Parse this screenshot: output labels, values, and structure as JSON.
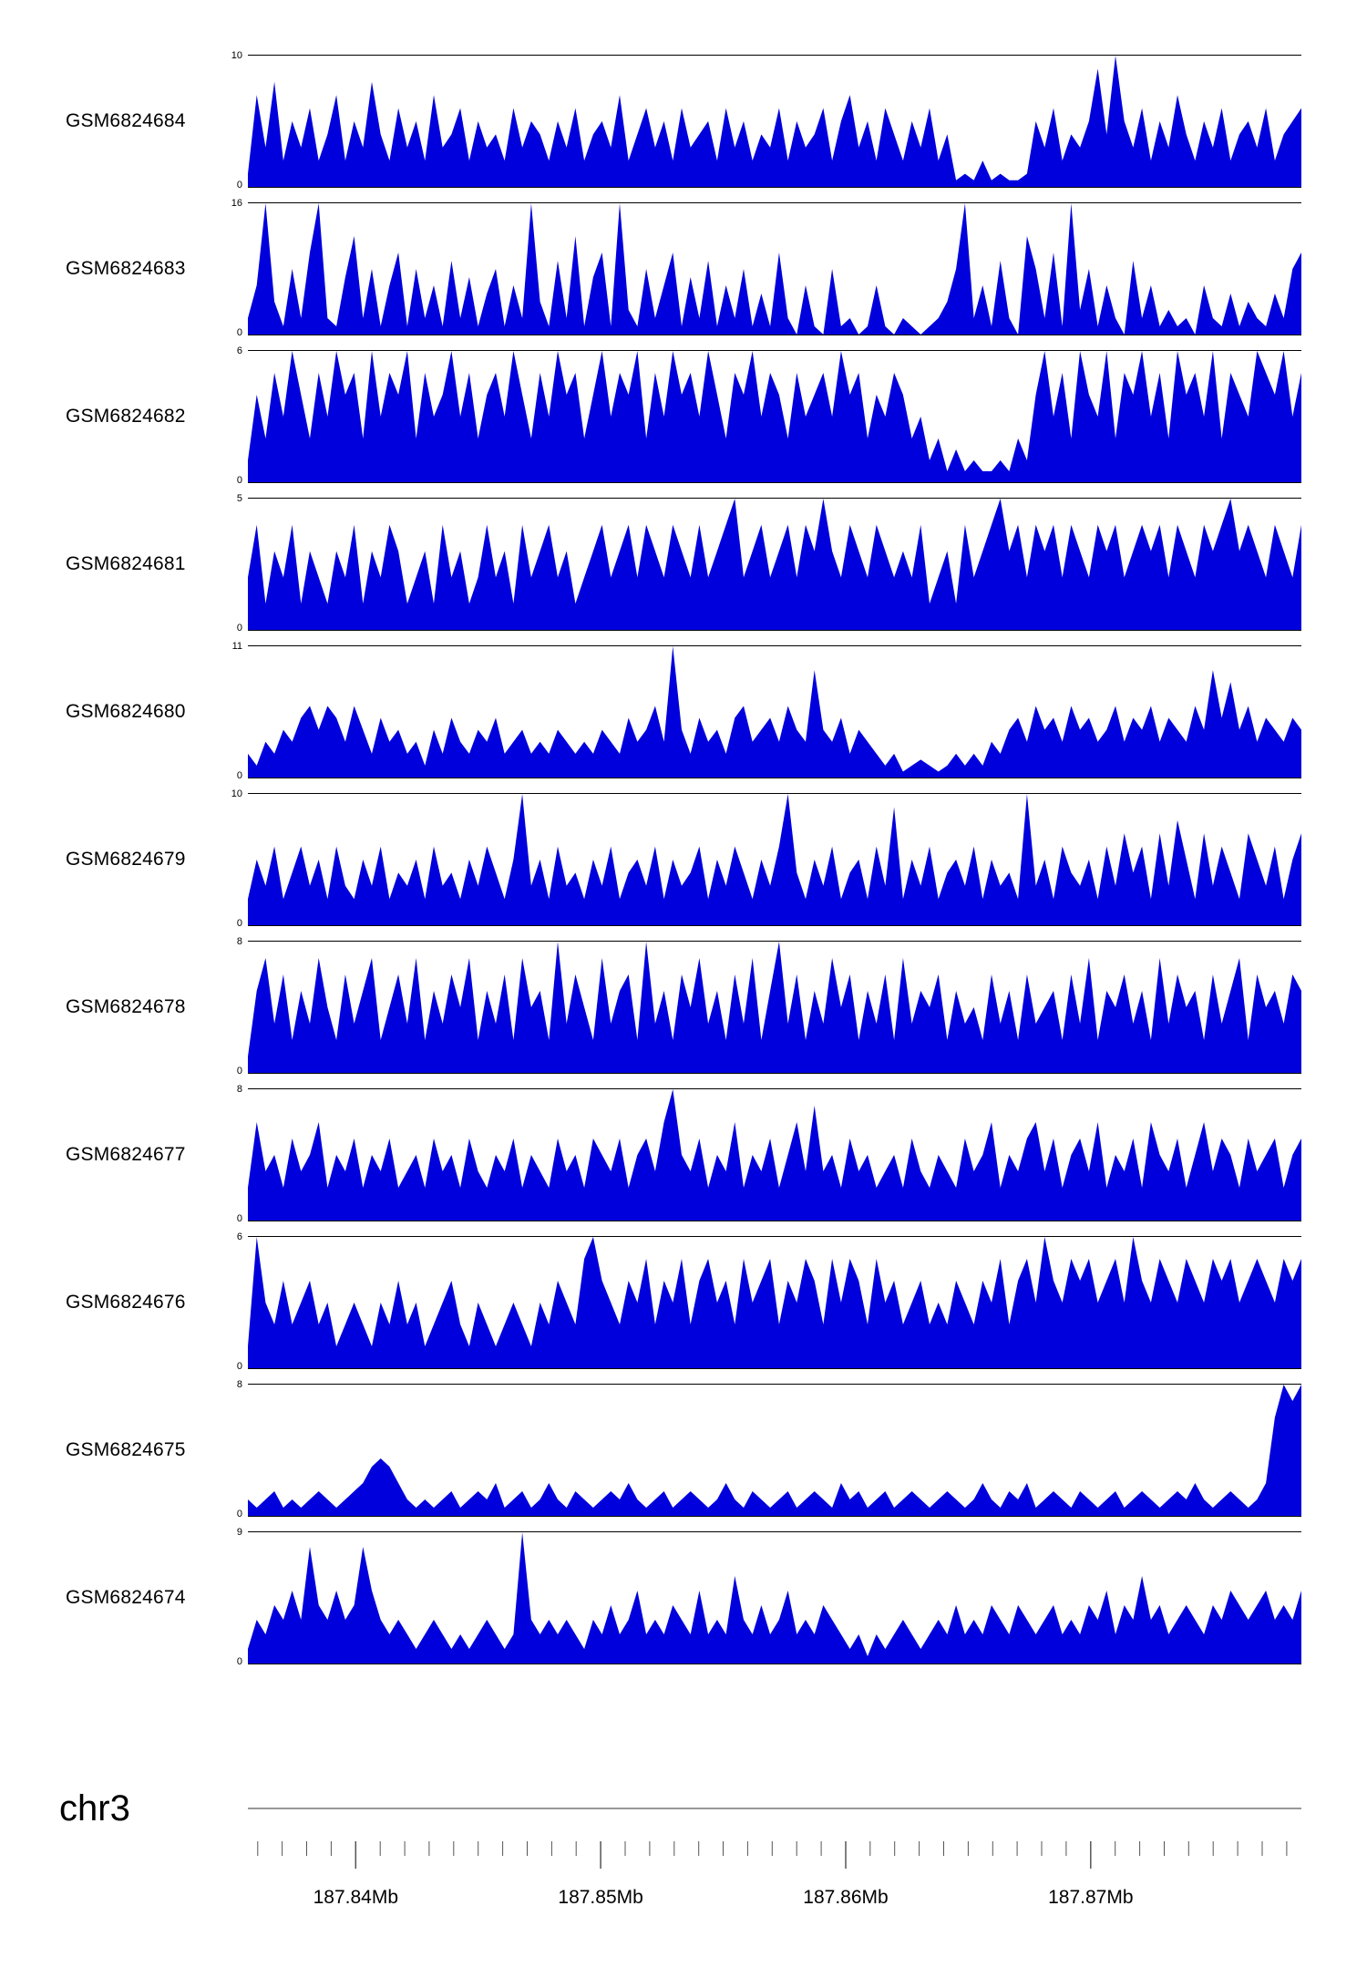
{
  "page": {
    "background": "#ffffff"
  },
  "colors": {
    "track_fill": "#0000dd",
    "frame_line": "#000000",
    "axis_line": "#777777"
  },
  "chart_data": {
    "type": "area",
    "title": "",
    "description": "Genome browser read-coverage tracks for 11 GEO samples over chr3",
    "chromosome": "chr3",
    "y_zero_label": "0",
    "x_axis": {
      "start_mb": 187.8356,
      "end_mb": 187.8786,
      "unit": "Mb",
      "minor_tick_step_mb": 0.001,
      "major_ticks_mb": [
        187.84,
        187.85,
        187.86,
        187.87
      ],
      "major_tick_labels": [
        "187.84Mb",
        "187.85Mb",
        "187.86Mb",
        "187.87Mb"
      ]
    },
    "tracks": [
      {
        "label": "GSM6824684",
        "ymax": 10,
        "ylim": [
          0,
          10
        ],
        "values": [
          1,
          7,
          3,
          8,
          2,
          5,
          3,
          6,
          2,
          4,
          7,
          2,
          5,
          3,
          8,
          4,
          2,
          6,
          3,
          5,
          2,
          7,
          3,
          4,
          6,
          2,
          5,
          3,
          4,
          2,
          6,
          3,
          5,
          4,
          2,
          5,
          3,
          6,
          2,
          4,
          5,
          3,
          7,
          2,
          4,
          6,
          3,
          5,
          2,
          6,
          3,
          4,
          5,
          2,
          6,
          3,
          5,
          2,
          4,
          3,
          6,
          2,
          5,
          3,
          4,
          6,
          2,
          5,
          7,
          3,
          5,
          2,
          6,
          4,
          2,
          5,
          3,
          6,
          2,
          4,
          0.5,
          1,
          0.5,
          2,
          0.5,
          1,
          0.5,
          0.5,
          1,
          5,
          3,
          6,
          2,
          4,
          3,
          5,
          9,
          4,
          10,
          5,
          3,
          6,
          2,
          5,
          3,
          7,
          4,
          2,
          5,
          3,
          6,
          2,
          4,
          5,
          3,
          6,
          2,
          4,
          5,
          6
        ]
      },
      {
        "label": "GSM6824683",
        "ymax": 16,
        "ylim": [
          0,
          16
        ],
        "values": [
          2,
          6,
          16,
          4,
          1,
          8,
          2,
          10,
          16,
          2,
          1,
          7,
          12,
          2,
          8,
          1,
          6,
          10,
          1,
          8,
          2,
          6,
          1,
          9,
          2,
          7,
          1,
          5,
          8,
          1,
          6,
          2,
          16,
          4,
          1,
          9,
          2,
          12,
          1,
          7,
          10,
          1,
          16,
          3,
          1,
          8,
          2,
          6,
          10,
          1,
          7,
          2,
          9,
          1,
          6,
          2,
          8,
          1,
          5,
          1,
          10,
          2,
          0,
          6,
          1,
          0,
          8,
          1,
          2,
          0,
          1,
          6,
          1,
          0,
          2,
          1,
          0,
          1,
          2,
          4,
          8,
          16,
          2,
          6,
          1,
          9,
          2,
          0,
          12,
          8,
          2,
          10,
          1,
          16,
          3,
          8,
          1,
          6,
          2,
          0,
          9,
          2,
          6,
          1,
          3,
          1,
          2,
          0,
          6,
          2,
          1,
          5,
          1,
          4,
          2,
          1,
          5,
          2,
          8,
          10
        ]
      },
      {
        "label": "GSM6824682",
        "ymax": 6,
        "ylim": [
          0,
          6
        ],
        "values": [
          1,
          4,
          2,
          5,
          3,
          6,
          4,
          2,
          5,
          3,
          6,
          4,
          5,
          2,
          6,
          3,
          5,
          4,
          6,
          2,
          5,
          3,
          4,
          6,
          3,
          5,
          2,
          4,
          5,
          3,
          6,
          4,
          2,
          5,
          3,
          6,
          4,
          5,
          2,
          4,
          6,
          3,
          5,
          4,
          6,
          2,
          5,
          3,
          6,
          4,
          5,
          3,
          6,
          4,
          2,
          5,
          4,
          6,
          3,
          5,
          4,
          2,
          5,
          3,
          4,
          5,
          3,
          6,
          4,
          5,
          2,
          4,
          3,
          5,
          4,
          2,
          3,
          1,
          2,
          0.5,
          1.5,
          0.5,
          1,
          0.5,
          0.5,
          1,
          0.5,
          2,
          1,
          4,
          6,
          3,
          5,
          2,
          6,
          4,
          3,
          6,
          2,
          5,
          4,
          6,
          3,
          5,
          2,
          6,
          4,
          5,
          3,
          6,
          2,
          5,
          4,
          3,
          6,
          5,
          4,
          6,
          3,
          5
        ]
      },
      {
        "label": "GSM6824681",
        "ymax": 5,
        "ylim": [
          0,
          5
        ],
        "values": [
          2,
          4,
          1,
          3,
          2,
          4,
          1,
          3,
          2,
          1,
          3,
          2,
          4,
          1,
          3,
          2,
          4,
          3,
          1,
          2,
          3,
          1,
          4,
          2,
          3,
          1,
          2,
          4,
          2,
          3,
          1,
          4,
          2,
          3,
          4,
          2,
          3,
          1,
          2,
          3,
          4,
          2,
          3,
          4,
          2,
          4,
          3,
          2,
          4,
          3,
          2,
          4,
          2,
          3,
          4,
          5,
          2,
          3,
          4,
          2,
          3,
          4,
          2,
          4,
          3,
          5,
          3,
          2,
          4,
          3,
          2,
          4,
          3,
          2,
          3,
          2,
          4,
          1,
          2,
          3,
          1,
          4,
          2,
          3,
          4,
          5,
          3,
          4,
          2,
          4,
          3,
          4,
          2,
          4,
          3,
          2,
          4,
          3,
          4,
          2,
          3,
          4,
          3,
          4,
          2,
          4,
          3,
          2,
          4,
          3,
          4,
          5,
          3,
          4,
          3,
          2,
          4,
          3,
          2,
          4
        ]
      },
      {
        "label": "GSM6824680",
        "ymax": 11,
        "ylim": [
          0,
          11
        ],
        "values": [
          2,
          1,
          3,
          2,
          4,
          3,
          5,
          6,
          4,
          6,
          5,
          3,
          6,
          4,
          2,
          5,
          3,
          4,
          2,
          3,
          1,
          4,
          2,
          5,
          3,
          2,
          4,
          3,
          5,
          2,
          3,
          4,
          2,
          3,
          2,
          4,
          3,
          2,
          3,
          2,
          4,
          3,
          2,
          5,
          3,
          4,
          6,
          3,
          11,
          4,
          2,
          5,
          3,
          4,
          2,
          5,
          6,
          3,
          4,
          5,
          3,
          6,
          4,
          3,
          9,
          4,
          3,
          5,
          2,
          4,
          3,
          2,
          1,
          2,
          0.5,
          1,
          1.5,
          1,
          0.5,
          1,
          2,
          1,
          2,
          1,
          3,
          2,
          4,
          5,
          3,
          6,
          4,
          5,
          3,
          6,
          4,
          5,
          3,
          4,
          6,
          3,
          5,
          4,
          6,
          3,
          5,
          4,
          3,
          6,
          4,
          9,
          5,
          8,
          4,
          6,
          3,
          5,
          4,
          3,
          5,
          4
        ]
      },
      {
        "label": "GSM6824679",
        "ymax": 10,
        "ylim": [
          0,
          10
        ],
        "values": [
          2,
          5,
          3,
          6,
          2,
          4,
          6,
          3,
          5,
          2,
          6,
          3,
          2,
          5,
          3,
          6,
          2,
          4,
          3,
          5,
          2,
          6,
          3,
          4,
          2,
          5,
          3,
          6,
          4,
          2,
          5,
          10,
          3,
          5,
          2,
          6,
          3,
          4,
          2,
          5,
          3,
          6,
          2,
          4,
          5,
          3,
          6,
          2,
          5,
          3,
          4,
          6,
          2,
          5,
          3,
          6,
          4,
          2,
          5,
          3,
          6,
          10,
          4,
          2,
          5,
          3,
          6,
          2,
          4,
          5,
          2,
          6,
          3,
          9,
          2,
          5,
          3,
          6,
          2,
          4,
          5,
          3,
          6,
          2,
          5,
          3,
          4,
          2,
          10,
          3,
          5,
          2,
          6,
          4,
          3,
          5,
          2,
          6,
          3,
          7,
          4,
          6,
          2,
          7,
          3,
          8,
          5,
          2,
          7,
          3,
          6,
          4,
          2,
          7,
          5,
          3,
          6,
          2,
          5,
          7
        ]
      },
      {
        "label": "GSM6824678",
        "ymax": 8,
        "ylim": [
          0,
          8
        ],
        "values": [
          1,
          5,
          7,
          3,
          6,
          2,
          5,
          3,
          7,
          4,
          2,
          6,
          3,
          5,
          7,
          2,
          4,
          6,
          3,
          7,
          2,
          5,
          3,
          6,
          4,
          7,
          2,
          5,
          3,
          6,
          2,
          7,
          4,
          5,
          2,
          8,
          3,
          6,
          4,
          2,
          7,
          3,
          5,
          6,
          2,
          8,
          3,
          5,
          2,
          6,
          4,
          7,
          3,
          5,
          2,
          6,
          3,
          7,
          2,
          5,
          8,
          3,
          6,
          2,
          5,
          3,
          7,
          4,
          6,
          2,
          5,
          3,
          6,
          2,
          7,
          3,
          5,
          4,
          6,
          2,
          5,
          3,
          4,
          2,
          6,
          3,
          5,
          2,
          6,
          3,
          4,
          5,
          2,
          6,
          3,
          7,
          2,
          5,
          4,
          6,
          3,
          5,
          2,
          7,
          3,
          6,
          4,
          5,
          2,
          6,
          3,
          5,
          7,
          2,
          6,
          4,
          5,
          3,
          6,
          5
        ]
      },
      {
        "label": "GSM6824677",
        "ymax": 8,
        "ylim": [
          0,
          8
        ],
        "values": [
          2,
          6,
          3,
          4,
          2,
          5,
          3,
          4,
          6,
          2,
          4,
          3,
          5,
          2,
          4,
          3,
          5,
          2,
          3,
          4,
          2,
          5,
          3,
          4,
          2,
          5,
          3,
          2,
          4,
          3,
          5,
          2,
          4,
          3,
          2,
          5,
          3,
          4,
          2,
          5,
          4,
          3,
          5,
          2,
          4,
          5,
          3,
          6,
          8,
          4,
          3,
          5,
          2,
          4,
          3,
          6,
          2,
          4,
          3,
          5,
          2,
          4,
          6,
          3,
          7,
          3,
          4,
          2,
          5,
          3,
          4,
          2,
          3,
          4,
          2,
          5,
          3,
          2,
          4,
          3,
          2,
          5,
          3,
          4,
          6,
          2,
          4,
          3,
          5,
          6,
          3,
          5,
          2,
          4,
          5,
          3,
          6,
          2,
          4,
          3,
          5,
          2,
          6,
          4,
          3,
          5,
          2,
          4,
          6,
          3,
          5,
          4,
          2,
          5,
          3,
          4,
          5,
          2,
          4,
          5
        ]
      },
      {
        "label": "GSM6824676",
        "ymax": 6,
        "ylim": [
          0,
          6
        ],
        "values": [
          1,
          6,
          3,
          2,
          4,
          2,
          3,
          4,
          2,
          3,
          1,
          2,
          3,
          2,
          1,
          3,
          2,
          4,
          2,
          3,
          1,
          2,
          3,
          4,
          2,
          1,
          3,
          2,
          1,
          2,
          3,
          2,
          1,
          3,
          2,
          4,
          3,
          2,
          5,
          6,
          4,
          3,
          2,
          4,
          3,
          5,
          2,
          4,
          3,
          5,
          2,
          4,
          5,
          3,
          4,
          2,
          5,
          3,
          4,
          5,
          2,
          4,
          3,
          5,
          4,
          2,
          5,
          3,
          5,
          4,
          2,
          5,
          3,
          4,
          2,
          3,
          4,
          2,
          3,
          2,
          4,
          3,
          2,
          4,
          3,
          5,
          2,
          4,
          5,
          3,
          6,
          4,
          3,
          5,
          4,
          5,
          3,
          4,
          5,
          3,
          6,
          4,
          3,
          5,
          4,
          3,
          5,
          4,
          3,
          5,
          4,
          5,
          3,
          4,
          5,
          4,
          3,
          5,
          4,
          5
        ]
      },
      {
        "label": "GSM6824675",
        "ymax": 8,
        "ylim": [
          0,
          8
        ],
        "values": [
          1,
          0.5,
          1,
          1.5,
          0.5,
          1,
          0.5,
          1,
          1.5,
          1,
          0.5,
          1,
          1.5,
          2,
          3,
          3.5,
          3,
          2,
          1,
          0.5,
          1,
          0.5,
          1,
          1.5,
          0.5,
          1,
          1.5,
          1,
          2,
          0.5,
          1,
          1.5,
          0.5,
          1,
          2,
          1,
          0.5,
          1.5,
          1,
          0.5,
          1,
          1.5,
          1,
          2,
          1,
          0.5,
          1,
          1.5,
          0.5,
          1,
          1.5,
          1,
          0.5,
          1,
          2,
          1,
          0.5,
          1.5,
          1,
          0.5,
          1,
          1.5,
          0.5,
          1,
          1.5,
          1,
          0.5,
          2,
          1,
          1.5,
          0.5,
          1,
          1.5,
          0.5,
          1,
          1.5,
          1,
          0.5,
          1,
          1.5,
          1,
          0.5,
          1,
          2,
          1,
          0.5,
          1.5,
          1,
          2,
          0.5,
          1,
          1.5,
          1,
          0.5,
          1.5,
          1,
          0.5,
          1,
          1.5,
          0.5,
          1,
          1.5,
          1,
          0.5,
          1,
          1.5,
          1,
          2,
          1,
          0.5,
          1,
          1.5,
          1,
          0.5,
          1,
          2,
          6,
          8,
          7,
          8
        ]
      },
      {
        "label": "GSM6824674",
        "ymax": 9,
        "ylim": [
          0,
          9
        ],
        "values": [
          1,
          3,
          2,
          4,
          3,
          5,
          3,
          8,
          4,
          3,
          5,
          3,
          4,
          8,
          5,
          3,
          2,
          3,
          2,
          1,
          2,
          3,
          2,
          1,
          2,
          1,
          2,
          3,
          2,
          1,
          2,
          9,
          3,
          2,
          3,
          2,
          3,
          2,
          1,
          3,
          2,
          4,
          2,
          3,
          5,
          2,
          3,
          2,
          4,
          3,
          2,
          5,
          2,
          3,
          2,
          6,
          3,
          2,
          4,
          2,
          3,
          5,
          2,
          3,
          2,
          4,
          3,
          2,
          1,
          2,
          0.5,
          2,
          1,
          2,
          3,
          2,
          1,
          2,
          3,
          2,
          4,
          2,
          3,
          2,
          4,
          3,
          2,
          4,
          3,
          2,
          3,
          4,
          2,
          3,
          2,
          4,
          3,
          5,
          2,
          4,
          3,
          6,
          3,
          4,
          2,
          3,
          4,
          3,
          2,
          4,
          3,
          5,
          4,
          3,
          4,
          5,
          3,
          4,
          3,
          5
        ]
      }
    ]
  }
}
